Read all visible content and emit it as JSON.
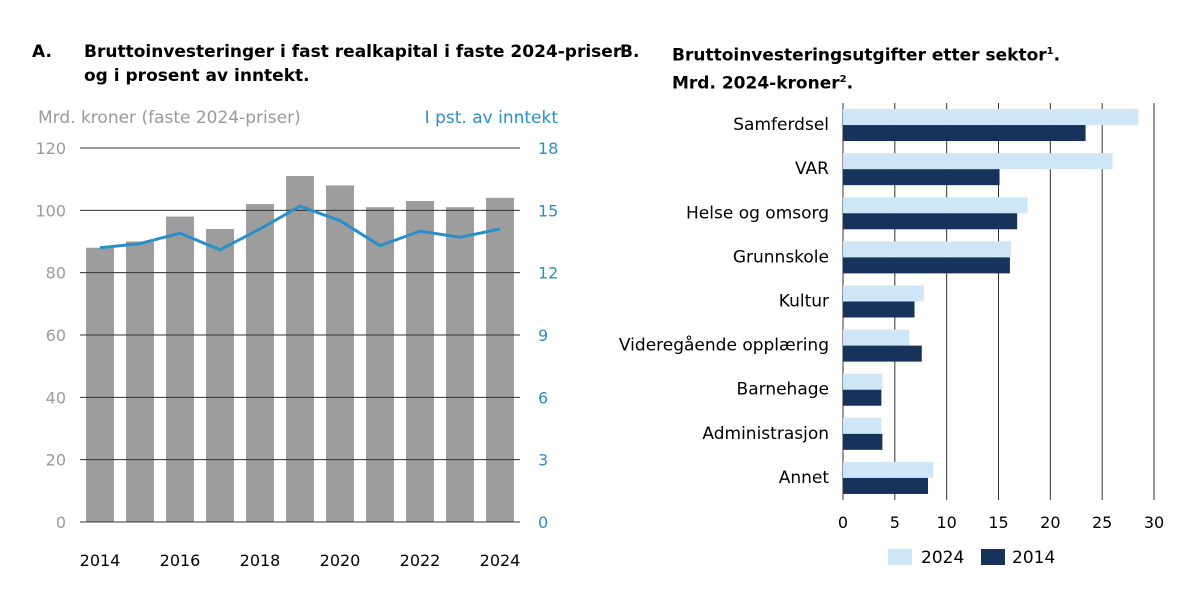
{
  "panel_a": {
    "letter": "A.",
    "title_line1": "Bruttoinvesteringer i fast realkapital i faste 2024-priser",
    "title_line2": "og i prosent av inntekt."
  },
  "panel_b": {
    "letter": "B.",
    "title_line1": "Bruttoinvesteringsutgifter etter sektor",
    "title_sup1": "1",
    "title_line1_end": ".",
    "title_line2": "Mrd. 2024-kroner",
    "title_sup2": "2",
    "title_line2_end": "."
  },
  "colors": {
    "bar_gray": "#9d9d9d",
    "line_blue": "#2a8fc9",
    "light_blue": "#cfe6f7",
    "navy": "#17335c",
    "grid": "#333333"
  },
  "chart_data": [
    {
      "type": "bar",
      "title": "",
      "ylabel": "Mrd. kroner (faste 2024-priser)",
      "y2label": "I pst. av inntekt",
      "x": [
        2014,
        2015,
        2016,
        2017,
        2018,
        2019,
        2020,
        2021,
        2022,
        2023,
        2024
      ],
      "x_ticks": [
        "2014",
        "2016",
        "2018",
        "2020",
        "2022",
        "2024"
      ],
      "ylim": [
        0,
        120
      ],
      "y_ticks": [
        "0",
        "20",
        "40",
        "60",
        "80",
        "100",
        "120"
      ],
      "y2lim": [
        0,
        18
      ],
      "y2_ticks": [
        "0",
        "3",
        "6",
        "9",
        "12",
        "15",
        "18"
      ],
      "grid": "horizontal",
      "series": [
        {
          "type": "bar",
          "axis": "left",
          "values": [
            88,
            90,
            98,
            94,
            102,
            111,
            108,
            101,
            103,
            101,
            104
          ]
        },
        {
          "type": "line",
          "axis": "right",
          "values": [
            13.2,
            13.4,
            13.9,
            13.1,
            14.1,
            15.2,
            14.5,
            13.3,
            14.0,
            13.7,
            14.1
          ]
        }
      ]
    },
    {
      "type": "bar",
      "orientation": "horizontal",
      "title": "",
      "categories": [
        "Samferdsel",
        "VAR",
        "Helse og omsorg",
        "Grunnskole",
        "Kultur",
        "Videregående opplæring",
        "Barnehage",
        "Administrasjon",
        "Annet"
      ],
      "xlim": [
        0,
        30
      ],
      "x_ticks": [
        "0",
        "5",
        "10",
        "15",
        "20",
        "25",
        "30"
      ],
      "grid": "vertical",
      "legend": "bottom",
      "series": [
        {
          "name": "2024",
          "values": [
            28.5,
            26.0,
            17.8,
            16.2,
            7.8,
            6.4,
            3.8,
            3.7,
            8.7
          ]
        },
        {
          "name": "2014",
          "values": [
            23.4,
            15.1,
            16.8,
            16.1,
            6.9,
            7.6,
            3.7,
            3.8,
            8.2
          ]
        }
      ]
    }
  ]
}
